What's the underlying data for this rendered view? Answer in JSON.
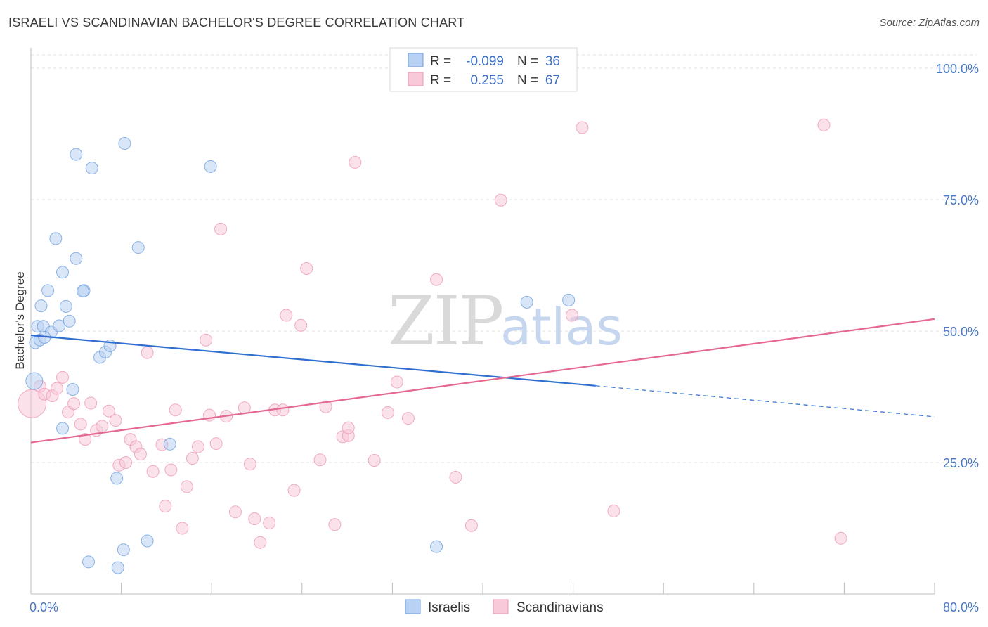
{
  "title": "ISRAELI VS SCANDINAVIAN BACHELOR'S DEGREE CORRELATION CHART",
  "source": "Source: ZipAtlas.com",
  "watermark": {
    "zip": "ZIP",
    "atlas": "atlas"
  },
  "colors": {
    "israelis": "#6fa0e0",
    "israelis_fill": "#b9d1f2",
    "israelis_line": "#2f6fcf",
    "scandinavians": "#ec98b4",
    "scandinavians_fill": "#f8c9d8",
    "scandinavians_line": "#e46893",
    "tick_label": "#4a78c2"
  },
  "legend": {
    "rows": [
      {
        "r_label": "R =",
        "r_value": "-0.099",
        "n_label": "N =",
        "n_value": "36"
      },
      {
        "r_label": "R =",
        "r_value": "0.255",
        "n_label": "N =",
        "n_value": "67"
      }
    ]
  },
  "bottom_legend": {
    "israelis": "Israelis",
    "scandinavians": "Scandinavians"
  },
  "chart_data": {
    "type": "scatter",
    "xlabel": "",
    "ylabel": "Bachelor's Degree",
    "xlim": [
      0,
      80
    ],
    "ylim": [
      0,
      100
    ],
    "x_tick_labels": [
      "0.0%",
      "80.0%"
    ],
    "y_tick_labels": [
      "100.0%",
      "75.0%",
      "50.0%",
      "25.0%"
    ],
    "y_tick_values": [
      100,
      75,
      50,
      25
    ],
    "grid": true,
    "series": [
      {
        "name": "Israelis",
        "trend": {
          "x0": 0,
          "y0": 49.2,
          "x1": 50,
          "y1": 39.6,
          "dash_x1": 80,
          "dash_y1": 33.7
        },
        "points": [
          [
            0.3,
            40.5,
            2
          ],
          [
            0.4,
            47.8,
            1
          ],
          [
            0.6,
            50.9,
            1
          ],
          [
            0.8,
            48.3,
            1
          ],
          [
            0.9,
            54.8,
            1
          ],
          [
            1.1,
            50.9,
            1
          ],
          [
            1.5,
            57.7,
            1
          ],
          [
            1.8,
            49.8,
            1
          ],
          [
            2.2,
            67.6,
            1
          ],
          [
            2.5,
            51.0,
            1
          ],
          [
            2.8,
            61.2,
            1
          ],
          [
            3.1,
            54.7,
            1
          ],
          [
            3.4,
            51.9,
            1
          ],
          [
            3.7,
            38.9,
            1
          ],
          [
            4.0,
            83.6,
            1
          ],
          [
            4.0,
            63.8,
            1
          ],
          [
            4.7,
            57.7,
            1
          ],
          [
            2.8,
            31.5,
            1
          ],
          [
            5.1,
            6.1,
            1
          ],
          [
            5.4,
            81.0,
            1
          ],
          [
            6.1,
            45.0,
            1
          ],
          [
            6.6,
            46.0,
            1
          ],
          [
            7.0,
            47.2,
            1
          ],
          [
            7.6,
            22.0,
            1
          ],
          [
            7.7,
            5.0,
            1
          ],
          [
            8.2,
            8.4,
            1
          ],
          [
            8.3,
            85.7,
            1
          ],
          [
            9.5,
            65.9,
            1
          ],
          [
            10.3,
            10.1,
            1
          ],
          [
            12.3,
            28.5,
            1
          ],
          [
            15.9,
            81.3,
            1
          ],
          [
            35.9,
            9.0,
            1
          ],
          [
            43.9,
            55.5,
            1
          ],
          [
            47.6,
            55.9,
            1
          ],
          [
            1.2,
            48.8,
            1
          ],
          [
            4.6,
            57.6,
            1
          ]
        ]
      },
      {
        "name": "Scandinavians",
        "trend": {
          "x0": 0,
          "y0": 28.8,
          "x1": 80,
          "y1": 52.3
        },
        "points": [
          [
            0.1,
            36.2,
            3
          ],
          [
            0.8,
            39.5,
            1
          ],
          [
            1.2,
            38.0,
            1
          ],
          [
            1.9,
            37.7,
            1
          ],
          [
            2.3,
            39.1,
            1
          ],
          [
            2.8,
            41.2,
            1
          ],
          [
            3.3,
            34.6,
            1
          ],
          [
            3.8,
            36.2,
            1
          ],
          [
            4.4,
            32.3,
            1
          ],
          [
            4.8,
            29.4,
            1
          ],
          [
            5.3,
            36.3,
            1
          ],
          [
            5.8,
            31.1,
            1
          ],
          [
            6.3,
            31.9,
            1
          ],
          [
            6.9,
            34.8,
            1
          ],
          [
            7.5,
            33.0,
            1
          ],
          [
            7.8,
            24.5,
            1
          ],
          [
            8.4,
            25.0,
            1
          ],
          [
            8.8,
            29.4,
            1
          ],
          [
            9.3,
            28.0,
            1
          ],
          [
            9.7,
            26.6,
            1
          ],
          [
            10.3,
            45.9,
            1
          ],
          [
            10.8,
            23.3,
            1
          ],
          [
            11.6,
            28.4,
            1
          ],
          [
            11.9,
            16.7,
            1
          ],
          [
            12.4,
            23.6,
            1
          ],
          [
            12.8,
            35.0,
            1
          ],
          [
            13.4,
            12.5,
            1
          ],
          [
            13.8,
            20.4,
            1
          ],
          [
            14.3,
            25.8,
            1
          ],
          [
            14.8,
            28.0,
            1
          ],
          [
            15.5,
            48.3,
            1
          ],
          [
            15.8,
            34.0,
            1
          ],
          [
            16.4,
            28.6,
            1
          ],
          [
            16.8,
            69.4,
            1
          ],
          [
            17.3,
            33.8,
            1
          ],
          [
            18.1,
            15.6,
            1
          ],
          [
            18.9,
            35.4,
            1
          ],
          [
            19.4,
            24.7,
            1
          ],
          [
            19.8,
            14.3,
            1
          ],
          [
            20.3,
            9.8,
            1
          ],
          [
            21.1,
            13.5,
            1
          ],
          [
            21.6,
            35.0,
            1
          ],
          [
            22.3,
            35.0,
            1
          ],
          [
            22.6,
            53.0,
            1
          ],
          [
            23.3,
            19.7,
            1
          ],
          [
            23.9,
            51.1,
            1
          ],
          [
            24.4,
            61.9,
            1
          ],
          [
            25.6,
            25.5,
            1
          ],
          [
            26.1,
            35.6,
            1
          ],
          [
            26.9,
            13.2,
            1
          ],
          [
            27.6,
            29.9,
            1
          ],
          [
            28.1,
            30.1,
            1
          ],
          [
            28.1,
            31.6,
            1
          ],
          [
            28.7,
            82.1,
            1
          ],
          [
            30.4,
            25.4,
            1
          ],
          [
            31.6,
            34.5,
            1
          ],
          [
            32.4,
            40.3,
            1
          ],
          [
            33.4,
            33.4,
            1
          ],
          [
            35.9,
            59.8,
            1
          ],
          [
            37.6,
            22.2,
            1
          ],
          [
            39.0,
            13.0,
            1
          ],
          [
            41.6,
            74.9,
            1
          ],
          [
            47.9,
            53.0,
            1
          ],
          [
            48.8,
            88.7,
            1
          ],
          [
            51.6,
            15.8,
            1
          ],
          [
            70.2,
            89.2,
            1
          ],
          [
            71.7,
            10.6,
            1
          ]
        ]
      }
    ]
  }
}
